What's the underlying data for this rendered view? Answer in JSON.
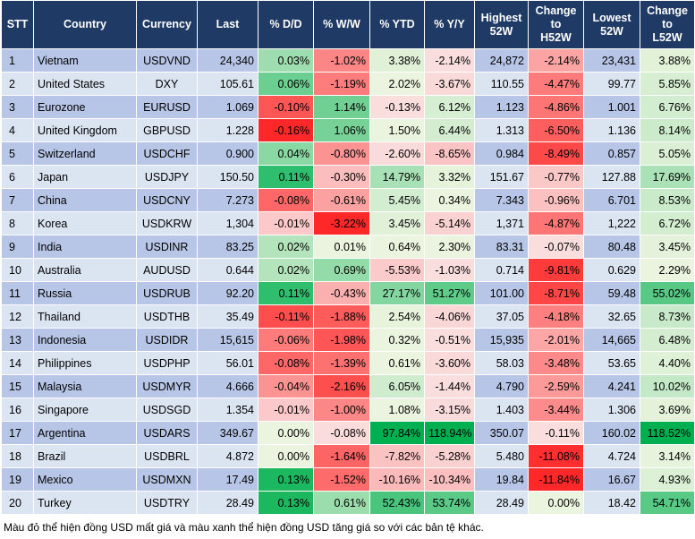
{
  "table": {
    "header": [
      "STT",
      "Country",
      "Currency",
      "Last",
      "% D/D",
      "% W/W",
      "% YTD",
      "% Y/Y",
      "Highest\n52W",
      "Change\nto\nH52W",
      "Lowest\n52W",
      "Change\nto\nL52W"
    ],
    "rows": [
      [
        "1",
        "Vietnam",
        "USDVND",
        "24,340",
        "0.03%",
        "-1.02%",
        "3.38%",
        "-2.14%",
        "24,872",
        "-2.14%",
        "23,431",
        "3.88%"
      ],
      [
        "2",
        "United States",
        "DXY",
        "105.61",
        "0.06%",
        "-1.19%",
        "2.02%",
        "-3.67%",
        "110.55",
        "-4.47%",
        "99.77",
        "5.85%"
      ],
      [
        "3",
        "Eurozone",
        "EURUSD",
        "1.069",
        "-0.10%",
        "1.14%",
        "-0.13%",
        "6.12%",
        "1.123",
        "-4.86%",
        "1.001",
        "6.76%"
      ],
      [
        "4",
        "United Kingdom",
        "GBPUSD",
        "1.228",
        "-0.16%",
        "1.06%",
        "1.50%",
        "6.44%",
        "1.313",
        "-6.50%",
        "1.136",
        "8.14%"
      ],
      [
        "5",
        "Switzerland",
        "USDCHF",
        "0.900",
        "0.04%",
        "-0.80%",
        "-2.60%",
        "-8.65%",
        "0.984",
        "-8.49%",
        "0.857",
        "5.05%"
      ],
      [
        "6",
        "Japan",
        "USDJPY",
        "150.50",
        "0.11%",
        "-0.30%",
        "14.79%",
        "3.32%",
        "151.67",
        "-0.77%",
        "127.88",
        "17.69%"
      ],
      [
        "7",
        "China",
        "USDCNY",
        "7.273",
        "-0.08%",
        "-0.61%",
        "5.45%",
        "0.34%",
        "7.343",
        "-0.96%",
        "6.701",
        "8.53%"
      ],
      [
        "8",
        "Korea",
        "USDKRW",
        "1,304",
        "-0.01%",
        "-3.22%",
        "3.45%",
        "-5.14%",
        "1,371",
        "-4.87%",
        "1,222",
        "6.72%"
      ],
      [
        "9",
        "India",
        "USDINR",
        "83.25",
        "0.02%",
        "0.01%",
        "0.64%",
        "2.30%",
        "83.31",
        "-0.07%",
        "80.48",
        "3.45%"
      ],
      [
        "10",
        "Australia",
        "AUDUSD",
        "0.644",
        "0.02%",
        "0.69%",
        "-5.53%",
        "-1.03%",
        "0.714",
        "-9.81%",
        "0.629",
        "2.29%"
      ],
      [
        "11",
        "Russia",
        "USDRUB",
        "92.20",
        "0.11%",
        "-0.43%",
        "27.17%",
        "51.27%",
        "101.00",
        "-8.71%",
        "59.48",
        "55.02%"
      ],
      [
        "12",
        "Thailand",
        "USDTHB",
        "35.49",
        "-0.11%",
        "-1.88%",
        "2.54%",
        "-4.06%",
        "37.05",
        "-4.18%",
        "32.65",
        "8.73%"
      ],
      [
        "13",
        "Indonesia",
        "USDIDR",
        "15,615",
        "-0.06%",
        "-1.98%",
        "0.32%",
        "-0.51%",
        "15,935",
        "-2.01%",
        "14,665",
        "6.48%"
      ],
      [
        "14",
        "Philippines",
        "USDPHP",
        "56.01",
        "-0.08%",
        "-1.39%",
        "0.61%",
        "-3.60%",
        "58.03",
        "-3.48%",
        "53.65",
        "4.40%"
      ],
      [
        "15",
        "Malaysia",
        "USDMYR",
        "4.666",
        "-0.04%",
        "-2.16%",
        "6.05%",
        "-1.44%",
        "4.790",
        "-2.59%",
        "4.241",
        "10.02%"
      ],
      [
        "16",
        "Singapore",
        "USDSGD",
        "1.354",
        "-0.01%",
        "-1.00%",
        "1.08%",
        "-3.15%",
        "1.403",
        "-3.44%",
        "1.306",
        "3.69%"
      ],
      [
        "17",
        "Argentina",
        "USDARS",
        "349.67",
        "0.00%",
        "-0.08%",
        "97.84%",
        "118.94%",
        "350.07",
        "-0.11%",
        "160.02",
        "118.52%"
      ],
      [
        "18",
        "Brazil",
        "USDBRL",
        "4.872",
        "0.00%",
        "-1.64%",
        "-7.82%",
        "-5.28%",
        "5.480",
        "-11.08%",
        "4.724",
        "3.14%"
      ],
      [
        "19",
        "Mexico",
        "USDMXN",
        "17.49",
        "0.13%",
        "-1.52%",
        "-10.16%",
        "-10.34%",
        "19.84",
        "-11.84%",
        "16.67",
        "4.93%"
      ],
      [
        "20",
        "Turkey",
        "USDTRY",
        "28.49",
        "0.13%",
        "0.61%",
        "52.43%",
        "53.74%",
        "28.49",
        "0.00%",
        "18.42",
        "54.71%"
      ]
    ]
  },
  "footnote": "Màu đỏ thể hiện đồng USD mất giá và màu xanh thể hiện đồng USD tăng giá so với các bản tệ khác."
}
